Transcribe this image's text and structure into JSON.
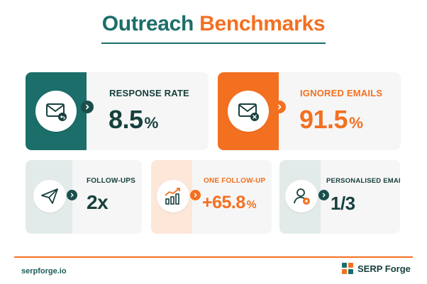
{
  "header": {
    "title_part1": "Outreach",
    "title_part2": "Benchmarks"
  },
  "colors": {
    "teal": "#1b6e69",
    "dark_teal": "#17403d",
    "orange": "#f37021",
    "card_bg": "#f6f6f6"
  },
  "cards": {
    "response_rate": {
      "label": "RESPONSE RATE",
      "value": "8.5",
      "unit": "%",
      "icon": "envelope-reply-icon"
    },
    "ignored_emails": {
      "label": "IGNORED EMAILS",
      "value": "91.5",
      "unit": "%",
      "icon": "envelope-close-icon"
    },
    "follow_ups": {
      "label": "FOLLOW-UPS",
      "value": "2x",
      "icon": "paper-plane-icon"
    },
    "one_follow_up": {
      "label": "ONE FOLLOW-UP",
      "value": "+65.8",
      "unit": "%",
      "icon": "growth-chart-icon"
    },
    "personalised": {
      "label": "PERSONALISED EMAILS",
      "value": "1/3",
      "icon": "user-star-icon"
    }
  },
  "footer": {
    "url": "serpforge.io",
    "brand": "SERP Forge"
  }
}
